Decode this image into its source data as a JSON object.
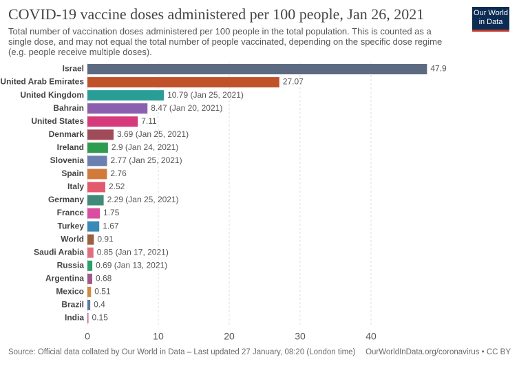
{
  "chart_data": {
    "type": "bar",
    "orientation": "horizontal",
    "title": "COVID-19 vaccine doses administered per 100 people, Jan 26, 2021",
    "subtitle": "Total number of vaccination doses administered per 100 people in the total population. This is counted as a single dose, and may not equal the total number of people vaccinated, depending on the specific dose regime (e.g. people receive multiple doses).",
    "categories": [
      "Israel",
      "United Arab Emirates",
      "United Kingdom",
      "Bahrain",
      "United States",
      "Denmark",
      "Ireland",
      "Slovenia",
      "Spain",
      "Italy",
      "Germany",
      "France",
      "Turkey",
      "World",
      "Saudi Arabia",
      "Russia",
      "Argentina",
      "Mexico",
      "Brazil",
      "India"
    ],
    "values": [
      47.9,
      27.07,
      10.79,
      8.47,
      7.11,
      3.69,
      2.9,
      2.77,
      2.76,
      2.52,
      2.29,
      1.75,
      1.67,
      0.91,
      0.85,
      0.69,
      0.68,
      0.51,
      0.4,
      0.15
    ],
    "value_labels": [
      "47.9",
      "27.07",
      "10.79 (Jan 25, 2021)",
      "8.47 (Jan 20, 2021)",
      "7.11",
      "3.69 (Jan 25, 2021)",
      "2.9 (Jan 24, 2021)",
      "2.77 (Jan 25, 2021)",
      "2.76",
      "2.52",
      "2.29 (Jan 25, 2021)",
      "1.75",
      "1.67",
      "0.91",
      "0.85 (Jan 17, 2021)",
      "0.69 (Jan 13, 2021)",
      "0.68",
      "0.51",
      "0.4",
      "0.15"
    ],
    "colors": [
      "#5b6a80",
      "#c0522a",
      "#2a9d97",
      "#8b5fb0",
      "#d63a7a",
      "#a04b5a",
      "#2e9b4e",
      "#6c80b0",
      "#d27a3a",
      "#e35a6e",
      "#3f8a78",
      "#d94da0",
      "#3a8ab8",
      "#9b6040",
      "#e07080",
      "#2aa06a",
      "#a05a8a",
      "#d08a40",
      "#5a7aa0",
      "#c070a0"
    ],
    "xlim": [
      0,
      50
    ],
    "xticks": [
      0,
      10,
      20,
      30,
      40
    ],
    "grid": true,
    "source": "Source: Official data collated by Our World in Data – Last updated 27 January, 08:20 (London time)",
    "credit": "OurWorldInData.org/coronavirus • CC BY",
    "logo": "Our World in Data"
  }
}
